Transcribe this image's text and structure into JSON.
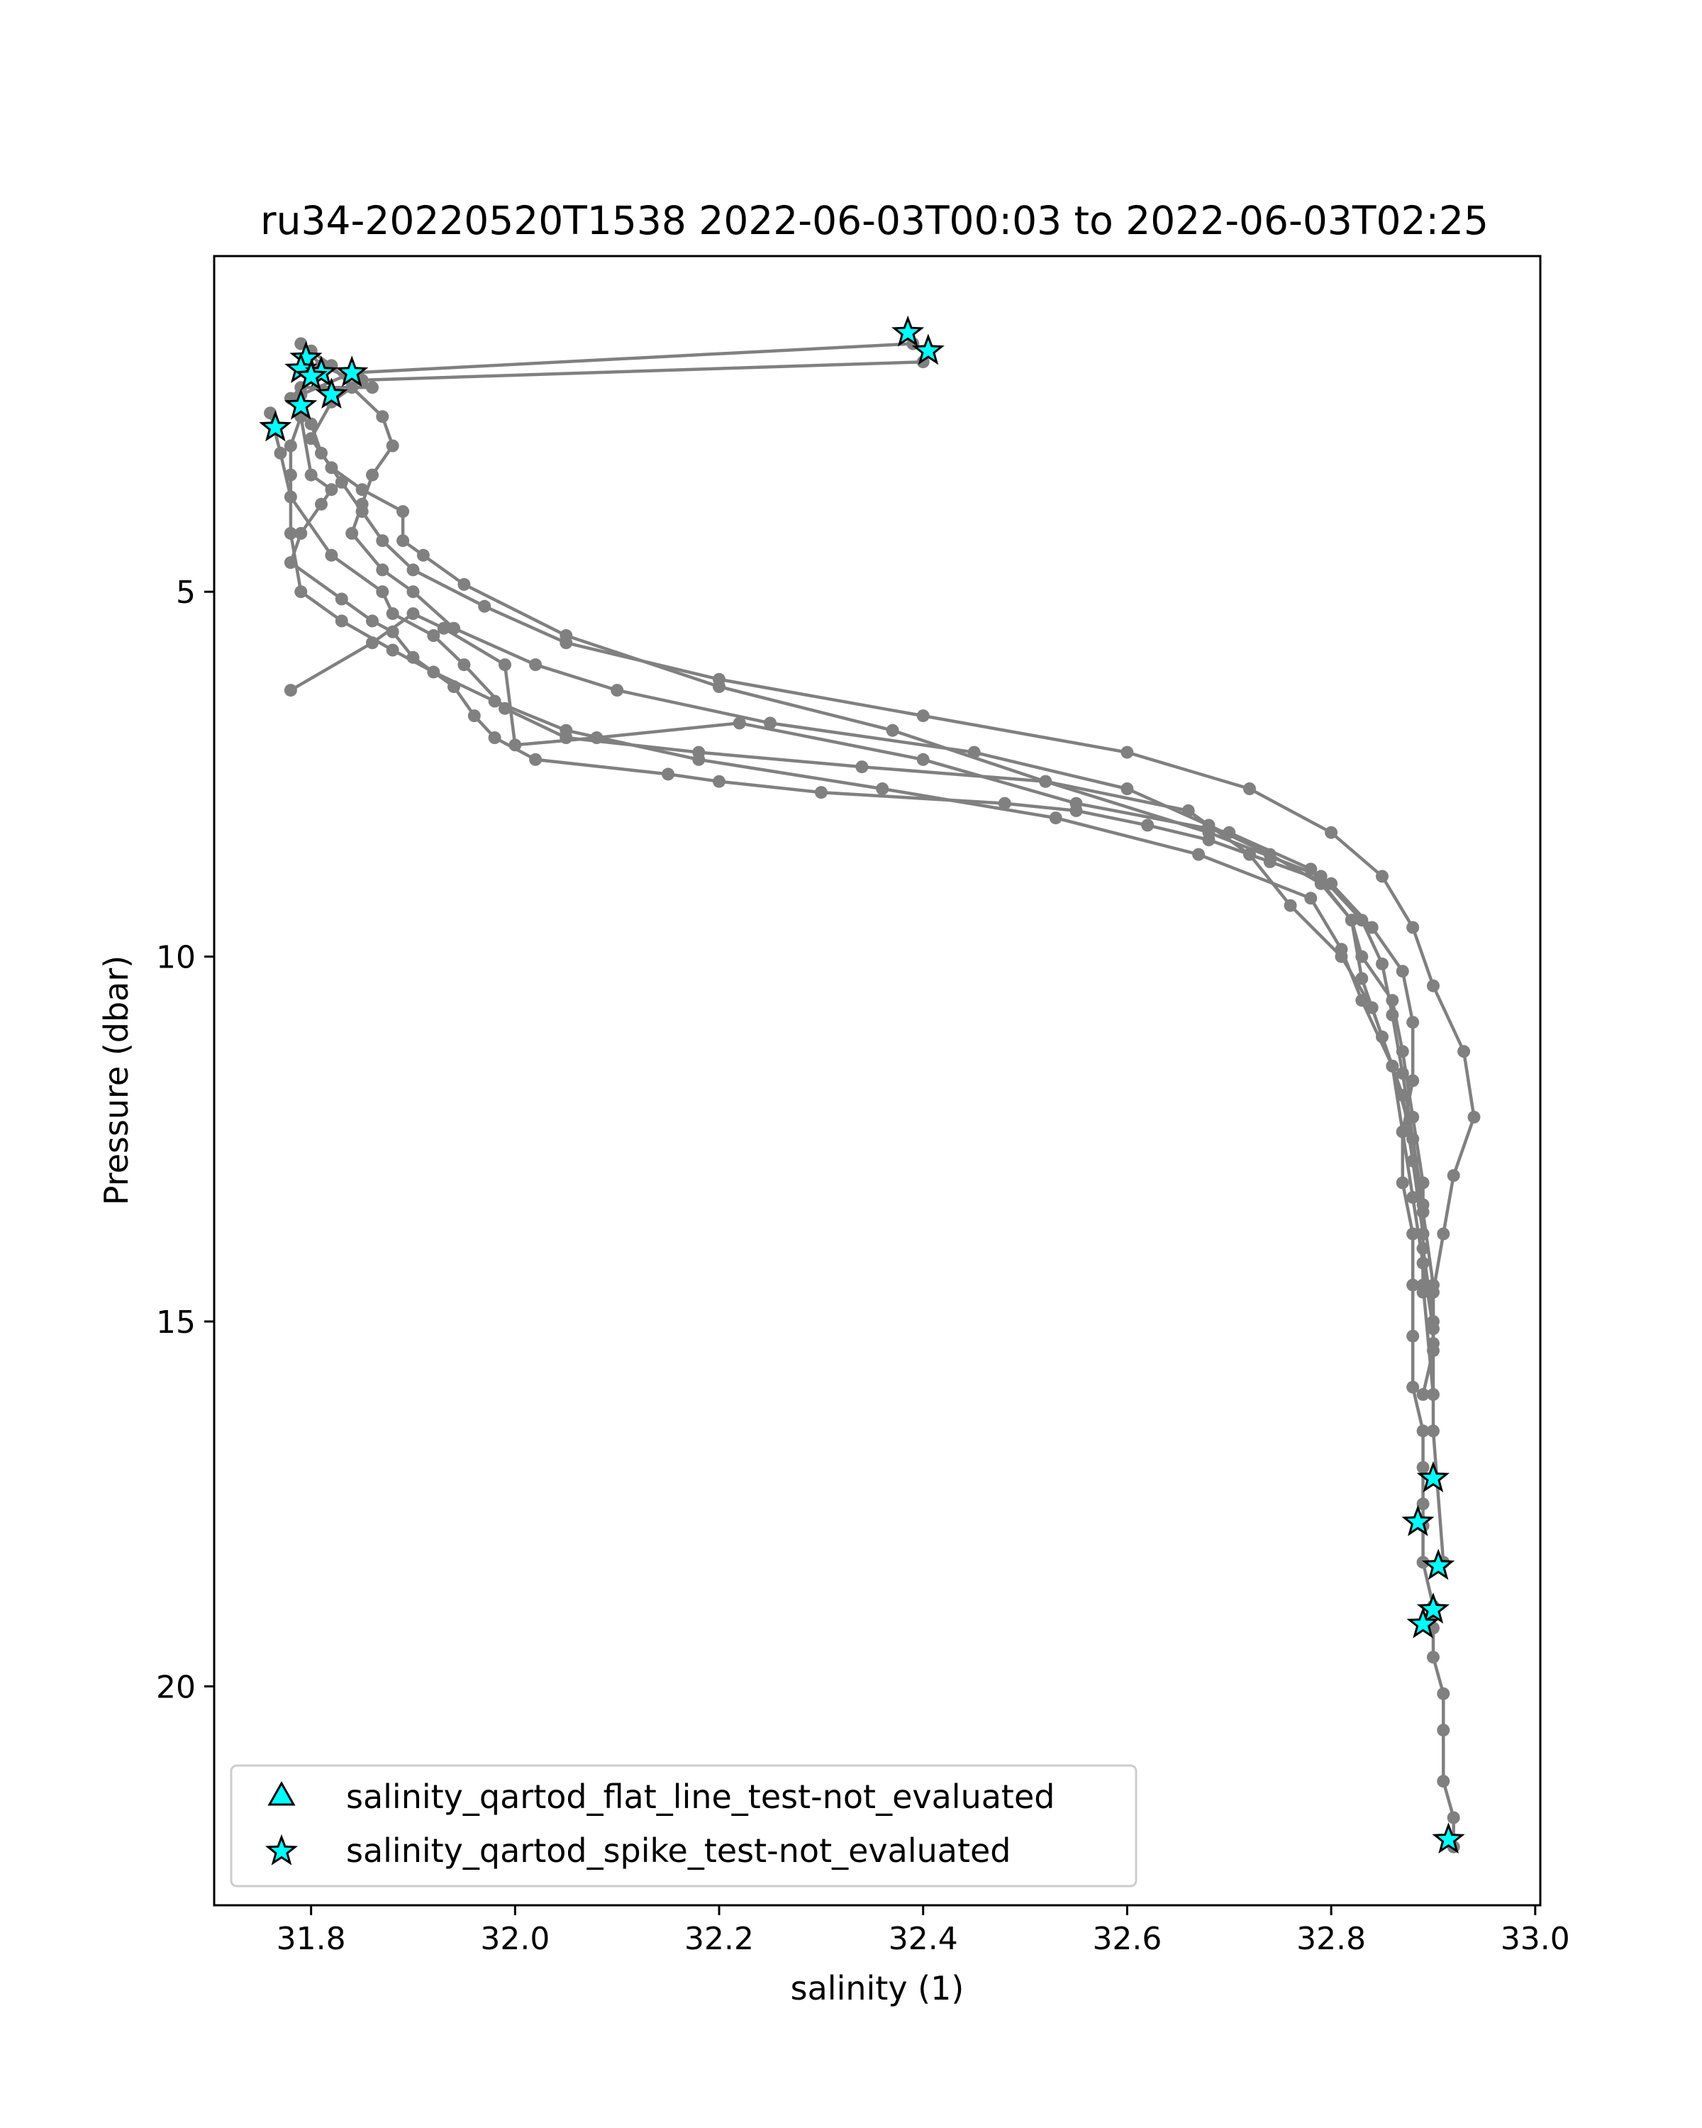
{
  "chart_data": {
    "type": "line",
    "title": "ru34-20220520T1538 2022-06-03T00:03 to 2022-06-03T02:25",
    "xlabel": "salinity (1)",
    "ylabel": "Pressure (dbar)",
    "xlim": [
      31.705,
      33.005
    ],
    "ylim": [
      23.0,
      0.4
    ],
    "y_inverted": true,
    "xticks": [
      "31.8",
      "32.0",
      "32.2",
      "32.4",
      "32.6",
      "32.8",
      "33.0"
    ],
    "yticks": [
      "5",
      "10",
      "15",
      "20"
    ],
    "grid": false,
    "legend_position": "lower-left",
    "colors": {
      "profile_line": "#808080",
      "flag_marker_fill": "#00ffff",
      "flag_marker_edge": "#000000"
    },
    "series": [
      {
        "style": "line-with-dots",
        "x": [
          31.79,
          31.8,
          31.81,
          31.86,
          31.79,
          31.78,
          31.79,
          31.8,
          31.82,
          31.81,
          31.79,
          31.78,
          31.83,
          31.86,
          31.88,
          31.9,
          31.94,
          31.96,
          31.98,
          32.02,
          32.15,
          32.2,
          32.3,
          32.48,
          32.55,
          32.62,
          32.68,
          32.74,
          32.8,
          32.84,
          32.87,
          32.88,
          32.88,
          32.87,
          32.87,
          32.88,
          32.88,
          32.88,
          32.88,
          32.89,
          32.89,
          32.89,
          32.89,
          32.89,
          32.9,
          32.9,
          32.9,
          32.91,
          32.91,
          32.91,
          32.92,
          32.92
        ],
        "y": [
          1.6,
          1.75,
          1.9,
          2.2,
          2.2,
          2.35,
          2.6,
          3.4,
          3.6,
          3.8,
          4.2,
          4.6,
          5.1,
          5.4,
          5.55,
          5.9,
          6.3,
          6.7,
          7.0,
          7.3,
          7.5,
          7.6,
          7.75,
          7.9,
          8.0,
          8.2,
          8.4,
          8.7,
          9.0,
          9.6,
          10.2,
          10.9,
          11.7,
          12.4,
          13.1,
          13.8,
          14.5,
          15.2,
          15.9,
          16.5,
          17.0,
          17.5,
          17.8,
          18.3,
          18.9,
          19.2,
          19.6,
          20.1,
          20.6,
          21.3,
          21.8,
          22.2
        ]
      },
      {
        "style": "line-with-dots",
        "x": [
          31.8,
          31.82,
          31.84,
          31.87,
          31.88,
          31.86,
          31.85,
          31.84,
          31.87,
          31.9,
          31.94,
          32.02,
          32.1,
          32.25,
          32.45,
          32.6,
          32.68,
          32.74,
          32.79,
          32.82,
          32.83,
          32.86,
          32.87,
          32.88,
          32.89,
          32.89,
          32.9,
          32.9,
          32.91
        ],
        "y": [
          1.7,
          1.9,
          2.2,
          2.6,
          3.0,
          3.4,
          3.8,
          4.2,
          4.7,
          5.0,
          5.5,
          6.0,
          6.35,
          6.8,
          7.2,
          7.7,
          8.2,
          8.6,
          9.0,
          9.5,
          10.0,
          10.6,
          11.3,
          12.2,
          13.1,
          14.0,
          15.0,
          16.5,
          18.3
        ]
      },
      {
        "style": "line-with-dots",
        "x": [
          32.4,
          31.85,
          31.82,
          31.8,
          31.82,
          31.85,
          31.89,
          31.89,
          31.91,
          31.95,
          32.05,
          32.2,
          32.37,
          32.52,
          32.68,
          32.79,
          32.83,
          32.85,
          32.86,
          32.87,
          32.88,
          32.89,
          32.89,
          32.9
        ],
        "y": [
          1.85,
          2.1,
          2.4,
          2.9,
          3.3,
          3.6,
          3.9,
          4.3,
          4.5,
          4.9,
          5.6,
          6.3,
          6.9,
          7.6,
          8.3,
          8.9,
          9.5,
          10.1,
          10.8,
          11.6,
          12.5,
          13.4,
          14.5,
          16.0
        ]
      },
      {
        "style": "line-with-dots",
        "x": [
          32.39,
          31.84,
          31.79,
          31.8,
          31.81,
          31.83,
          31.85,
          31.87,
          31.9,
          31.97,
          32.05,
          32.2,
          32.4,
          32.6,
          32.72,
          32.8,
          32.85,
          32.88,
          32.9,
          32.93,
          32.94,
          32.92,
          32.91,
          32.9,
          32.9,
          32.89
        ],
        "y": [
          1.6,
          2.0,
          2.3,
          2.7,
          3.1,
          3.5,
          3.9,
          4.3,
          4.7,
          5.2,
          5.7,
          6.2,
          6.7,
          7.2,
          7.7,
          8.3,
          8.9,
          9.6,
          10.4,
          11.3,
          12.2,
          13.0,
          13.8,
          14.6,
          15.4,
          16.0
        ]
      },
      {
        "style": "line-with-dots",
        "x": [
          31.79,
          31.78,
          31.78,
          31.78,
          31.79,
          31.83,
          31.88,
          31.92,
          31.98,
          32.05,
          32.18,
          32.36,
          32.53,
          32.67,
          32.78,
          32.81,
          32.83,
          32.86,
          32.88,
          32.89,
          32.9,
          32.9
        ],
        "y": [
          2.6,
          3.0,
          3.4,
          4.2,
          5.0,
          5.4,
          5.8,
          6.1,
          6.5,
          6.9,
          7.3,
          7.7,
          8.1,
          8.6,
          9.2,
          9.9,
          10.6,
          11.5,
          12.5,
          13.5,
          14.5,
          15.3
        ]
      },
      {
        "style": "line-with-dots",
        "x": [
          31.78,
          31.86,
          31.9,
          31.93,
          31.99,
          32.0,
          32.08,
          32.22,
          32.4,
          32.55,
          32.7,
          32.78,
          32.82,
          32.83,
          32.85,
          32.87,
          32.88,
          32.89,
          32.89
        ],
        "y": [
          6.35,
          5.7,
          5.3,
          5.5,
          6.0,
          7.1,
          7.0,
          6.8,
          7.3,
          7.9,
          8.3,
          8.8,
          9.5,
          10.3,
          11.1,
          11.9,
          12.8,
          13.8,
          14.6
        ]
      },
      {
        "style": "line-with-dots",
        "x": [
          31.76,
          31.77,
          31.78,
          31.82,
          31.87,
          31.88,
          31.92,
          31.95,
          31.99,
          32.05,
          32.18,
          32.34,
          32.52,
          32.66,
          32.72,
          32.76,
          32.81,
          32.84,
          32.86,
          32.87,
          32.88,
          32.89,
          32.9
        ],
        "y": [
          2.55,
          3.1,
          3.7,
          4.5,
          5.0,
          5.3,
          5.6,
          6.0,
          6.6,
          7.0,
          7.2,
          7.4,
          7.6,
          8.0,
          8.6,
          9.3,
          10.0,
          10.7,
          11.5,
          12.4,
          13.3,
          14.2,
          15.1
        ]
      }
    ],
    "flagged_points": [
      {
        "x": 32.385,
        "y": 1.45
      },
      {
        "x": 32.405,
        "y": 1.7
      },
      {
        "x": 31.795,
        "y": 1.8
      },
      {
        "x": 31.79,
        "y": 1.95
      },
      {
        "x": 31.81,
        "y": 2.0
      },
      {
        "x": 31.8,
        "y": 2.05
      },
      {
        "x": 31.84,
        "y": 2.0
      },
      {
        "x": 31.82,
        "y": 2.3
      },
      {
        "x": 31.79,
        "y": 2.45
      },
      {
        "x": 31.765,
        "y": 2.75
      },
      {
        "x": 32.9,
        "y": 17.15
      },
      {
        "x": 32.885,
        "y": 17.75
      },
      {
        "x": 32.905,
        "y": 18.35
      },
      {
        "x": 32.9,
        "y": 18.95
      },
      {
        "x": 32.89,
        "y": 19.15
      },
      {
        "x": 32.915,
        "y": 22.1
      }
    ],
    "legend": [
      {
        "marker": "triangle",
        "label": "salinity_qartod_flat_line_test-not_evaluated"
      },
      {
        "marker": "star",
        "label": "salinity_qartod_spike_test-not_evaluated"
      }
    ]
  }
}
